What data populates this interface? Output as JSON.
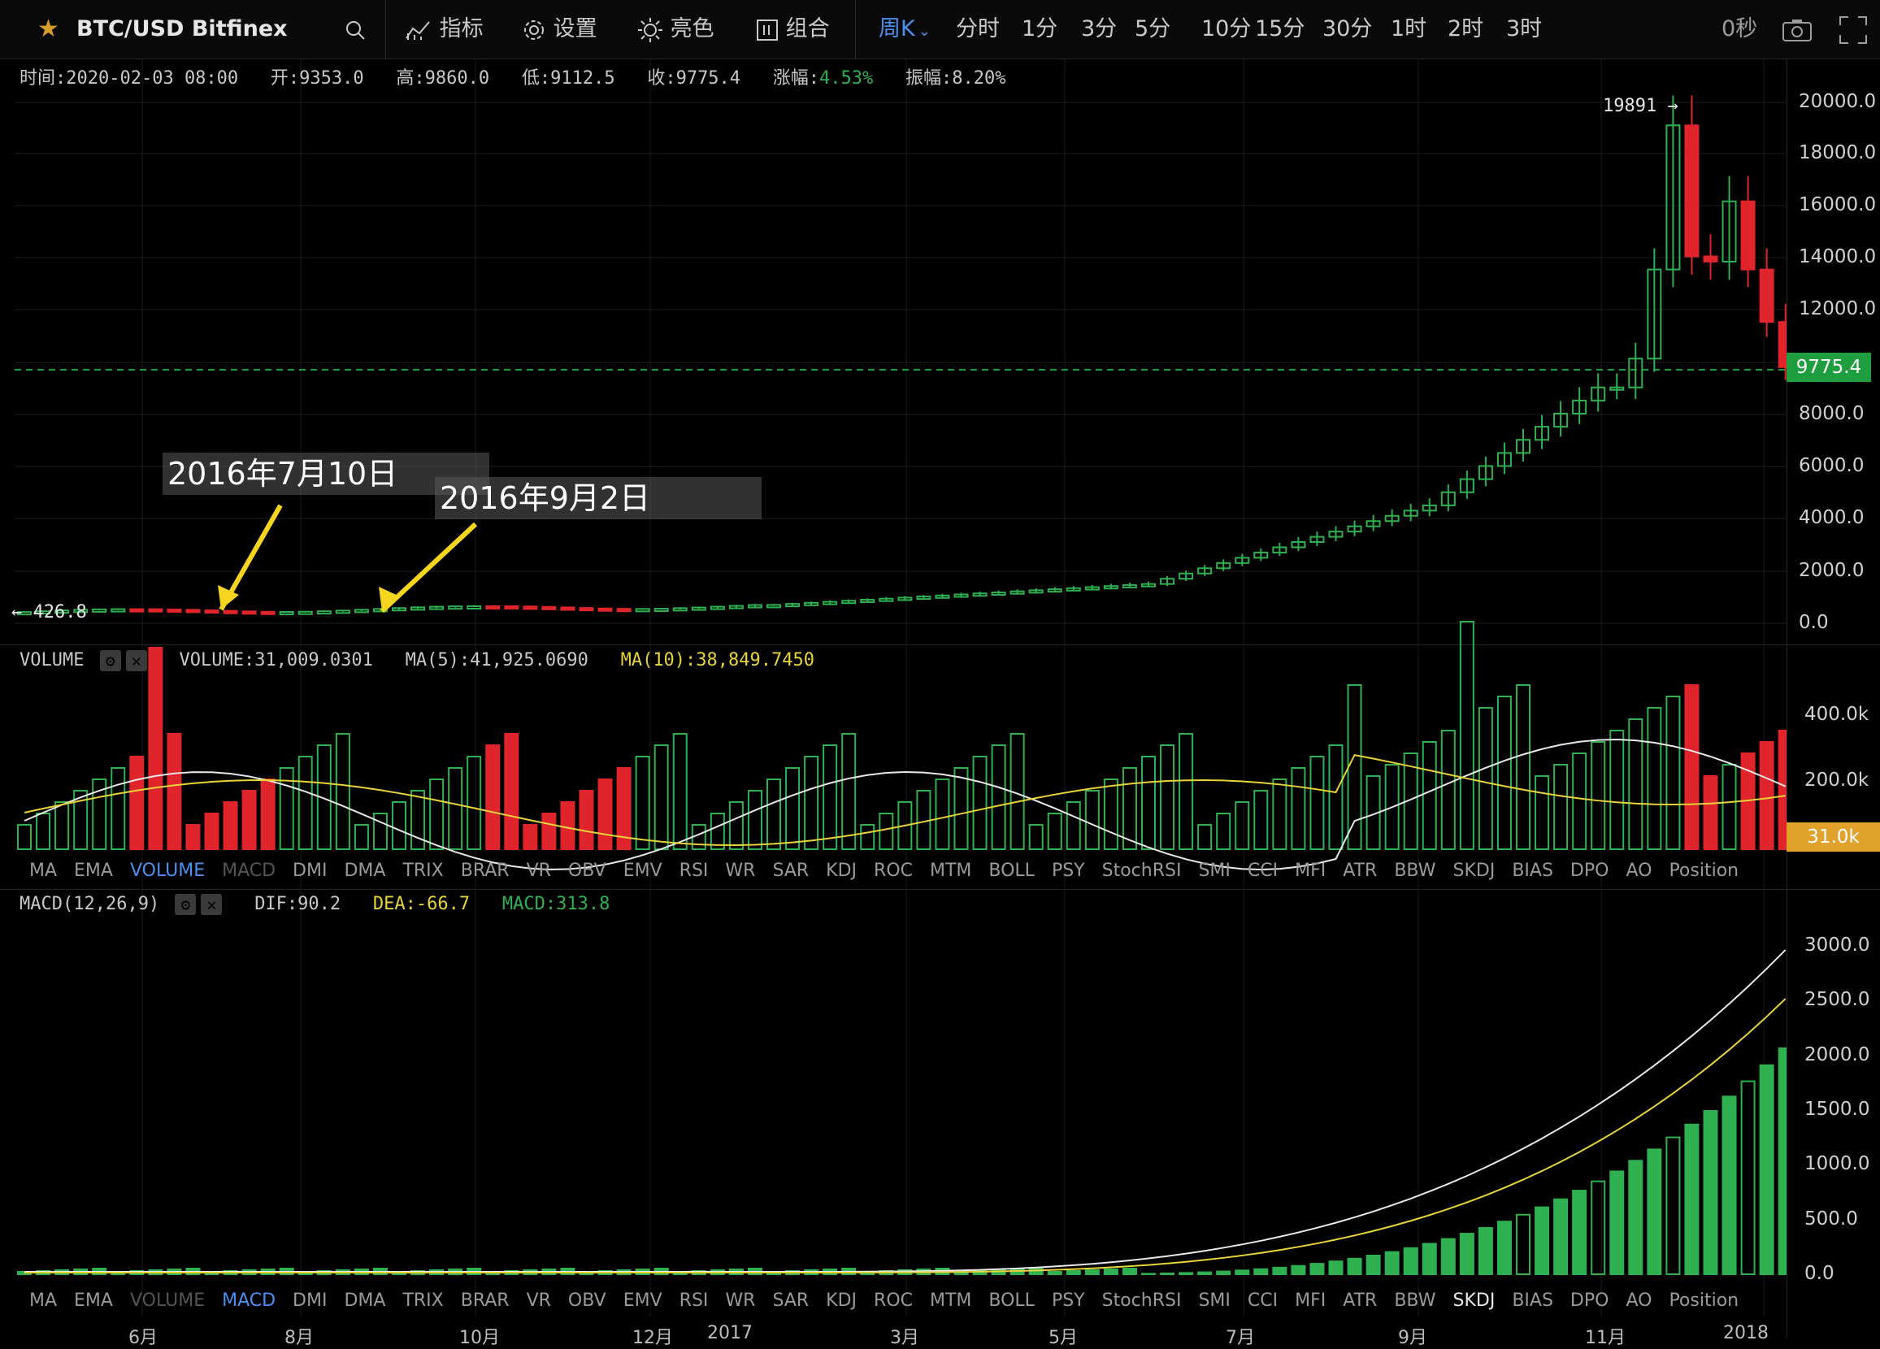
{
  "toolbar": {
    "symbol": "BTC/USD Bitfinex",
    "indicators_label": "指标",
    "settings_label": "设置",
    "theme_label": "亮色",
    "combo_label": "组合",
    "active_period": "周K",
    "periods": [
      "分时",
      "1分",
      "3分",
      "5分",
      "10分",
      "15分",
      "30分",
      "1时",
      "2时",
      "3时"
    ],
    "countdown": "0秒"
  },
  "info": {
    "time": "时间:2020-02-03 08:00",
    "open": "开:9353.0",
    "high": "高:9860.0",
    "low": "低:9112.5",
    "close": "收:9775.4",
    "change_label": "涨幅:",
    "change_value": "4.53%",
    "amplitude": "振幅:8.20%"
  },
  "price_axis": [
    "20000.0",
    "18000.0",
    "16000.0",
    "14000.0",
    "12000.0",
    "8000.0",
    "6000.0",
    "4000.0",
    "2000.0",
    "0.0"
  ],
  "current_price": "9775.4",
  "max_marker": "19891 →",
  "min_marker": "← 426.8",
  "annotations": [
    "2016年7月10日",
    "2016年9月2日"
  ],
  "volume": {
    "name": "VOLUME",
    "value": "VOLUME:31,009.0301",
    "ma5": "MA(5):41,925.0690",
    "ma10": "MA(10):38,849.7450",
    "axis": [
      "400.0k",
      "200.0k"
    ],
    "current": "31.0k"
  },
  "indicator_tabs": [
    "MA",
    "EMA",
    "VOLUME",
    "MACD",
    "DMI",
    "DMA",
    "TRIX",
    "BRAR",
    "VR",
    "OBV",
    "EMV",
    "RSI",
    "WR",
    "SAR",
    "KDJ",
    "ROC",
    "MTM",
    "BOLL",
    "PSY",
    "StochRSI",
    "SMI",
    "CCI",
    "MFI",
    "ATR",
    "BBW",
    "SKDJ",
    "BIAS",
    "DPO",
    "AO",
    "Position"
  ],
  "macd": {
    "name": "MACD(12,26,9)",
    "dif": "DIF:90.2",
    "dea": "DEA:-66.7",
    "macd": "MACD:313.8",
    "axis": [
      "3000.0",
      "2500.0",
      "2000.0",
      "1500.0",
      "1000.0",
      "500.0",
      "0.0"
    ]
  },
  "time_axis": [
    "6月",
    "8月",
    "10月",
    "12月",
    "2017",
    "3月",
    "5月",
    "7月",
    "9月",
    "11月",
    "2018"
  ],
  "colors": {
    "up": "#2fb051",
    "down": "#e0242b",
    "accent": "#4d8ff0",
    "ma10": "#e8d33a",
    "current_bg": "#1e9e3e",
    "vol_bg": "#e0a22a"
  }
}
